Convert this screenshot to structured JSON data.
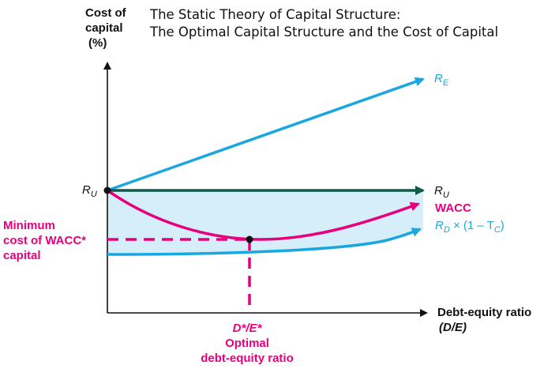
{
  "title": {
    "line1": "The Static Theory of Capital Structure:",
    "line2": "The Optimal Capital Structure and the Cost of Capital"
  },
  "y_axis": {
    "line1": "Cost of",
    "line2": "capital",
    "line3": "(%)"
  },
  "x_axis": {
    "line1": "Debt-equity ratio",
    "line2": "(D/E)"
  },
  "labels": {
    "ru_left": "R",
    "ru_left_sub": "U",
    "re": "R",
    "re_sub": "E",
    "ru_right": "R",
    "ru_right_sub": "U",
    "wacc": "WACC",
    "rd_main": "R",
    "rd_sub": "D",
    "rd_rest": " × (1 – T",
    "rd_tc_sub": "C",
    "rd_close": ")",
    "min_line1": "Minimum",
    "min_line2": "cost of WACC*",
    "min_line3": "capital",
    "opt_line1": "D*/E*",
    "opt_line2": "Optimal",
    "opt_line3": "debt-equity ratio"
  },
  "colors": {
    "re_line": "#1aa7e0",
    "ru_line": "#0f5a4a",
    "wacc_line": "#e6007e",
    "rd_line": "#1aa7e0",
    "shade": "#d6eefa",
    "axis": "#111111"
  }
}
